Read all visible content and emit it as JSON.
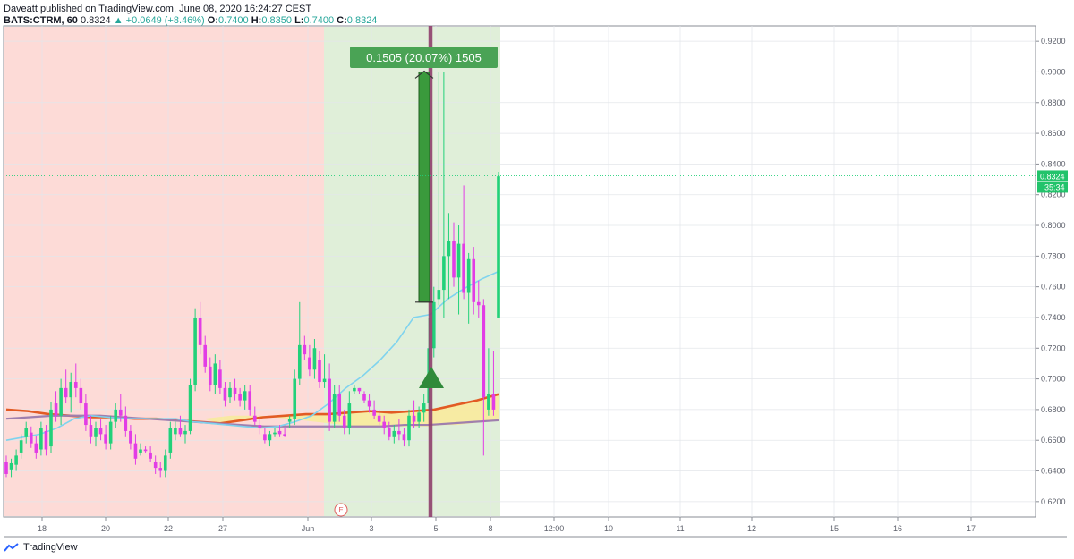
{
  "header": {
    "line1": "Daveatt published on TradingView.com, June 08, 2020 16:24:27 CEST",
    "symbol": "BATS:CTRM, 60",
    "last": "0.8324",
    "change": "▲ +0.0649 (+8.46%)",
    "ohlc": {
      "o_label": "O:",
      "o": "0.7400",
      "h_label": "H:",
      "h": "0.8350",
      "l_label": "L:",
      "l": "0.7400",
      "c_label": "C:",
      "c": "0.8324"
    }
  },
  "price_tag": "0.8324",
  "timer_tag": "35:34",
  "earnings_marker": "E",
  "measure_label": "0.1505 (20.07%) 1505",
  "footer": {
    "brand": "TradingView"
  },
  "colors": {
    "up": "#22d17a",
    "down": "#e23de5",
    "bg_red": "#fddbd7",
    "bg_green": "#e0efd9",
    "ema_fast": "#7fd3ee",
    "ema_mid": "#e25b24",
    "ema_slow": "#9f7fae",
    "cloud": "#f8eaa0",
    "measure": "#3a9a3c",
    "vline": "#8f3f6d"
  },
  "chart_data": {
    "type": "candlestick",
    "y_ticks": [
      "0.9200",
      "0.9000",
      "0.8800",
      "0.8600",
      "0.8400",
      "0.8200",
      "0.8000",
      "0.7800",
      "0.7600",
      "0.7400",
      "0.7200",
      "0.7000",
      "0.6800",
      "0.6600",
      "0.6400",
      "0.6200"
    ],
    "ylim": [
      0.61,
      0.93
    ],
    "x_ticks": [
      "18",
      "20",
      "22",
      "27",
      "Jun",
      "3",
      "5",
      "8",
      "12:00",
      "10",
      "11",
      "12",
      "15",
      "16",
      "17"
    ],
    "bars": [
      {
        "o": 0.646,
        "h": 0.65,
        "l": 0.636,
        "c": 0.638
      },
      {
        "o": 0.641,
        "h": 0.648,
        "l": 0.636,
        "c": 0.645
      },
      {
        "o": 0.644,
        "h": 0.654,
        "l": 0.64,
        "c": 0.65
      },
      {
        "o": 0.652,
        "h": 0.664,
        "l": 0.648,
        "c": 0.66
      },
      {
        "o": 0.662,
        "h": 0.672,
        "l": 0.658,
        "c": 0.668
      },
      {
        "o": 0.665,
        "h": 0.669,
        "l": 0.655,
        "c": 0.658
      },
      {
        "o": 0.658,
        "h": 0.663,
        "l": 0.648,
        "c": 0.652
      },
      {
        "o": 0.654,
        "h": 0.672,
        "l": 0.65,
        "c": 0.668
      },
      {
        "o": 0.666,
        "h": 0.67,
        "l": 0.65,
        "c": 0.654
      },
      {
        "o": 0.656,
        "h": 0.685,
        "l": 0.652,
        "c": 0.68
      },
      {
        "o": 0.684,
        "h": 0.692,
        "l": 0.672,
        "c": 0.676
      },
      {
        "o": 0.676,
        "h": 0.7,
        "l": 0.67,
        "c": 0.694
      },
      {
        "o": 0.694,
        "h": 0.706,
        "l": 0.684,
        "c": 0.688
      },
      {
        "o": 0.688,
        "h": 0.704,
        "l": 0.678,
        "c": 0.698
      },
      {
        "o": 0.698,
        "h": 0.71,
        "l": 0.688,
        "c": 0.694
      },
      {
        "o": 0.694,
        "h": 0.7,
        "l": 0.68,
        "c": 0.684
      },
      {
        "o": 0.684,
        "h": 0.69,
        "l": 0.666,
        "c": 0.67
      },
      {
        "o": 0.67,
        "h": 0.676,
        "l": 0.658,
        "c": 0.662
      },
      {
        "o": 0.662,
        "h": 0.672,
        "l": 0.656,
        "c": 0.668
      },
      {
        "o": 0.668,
        "h": 0.674,
        "l": 0.66,
        "c": 0.664
      },
      {
        "o": 0.664,
        "h": 0.67,
        "l": 0.654,
        "c": 0.658
      },
      {
        "o": 0.658,
        "h": 0.676,
        "l": 0.654,
        "c": 0.672
      },
      {
        "o": 0.672,
        "h": 0.684,
        "l": 0.668,
        "c": 0.68
      },
      {
        "o": 0.68,
        "h": 0.69,
        "l": 0.672,
        "c": 0.676
      },
      {
        "o": 0.676,
        "h": 0.682,
        "l": 0.662,
        "c": 0.666
      },
      {
        "o": 0.666,
        "h": 0.67,
        "l": 0.654,
        "c": 0.658
      },
      {
        "o": 0.658,
        "h": 0.664,
        "l": 0.644,
        "c": 0.648
      },
      {
        "o": 0.652,
        "h": 0.658,
        "l": 0.65,
        "c": 0.654
      },
      {
        "o": 0.654,
        "h": 0.656,
        "l": 0.652,
        "c": 0.653
      },
      {
        "o": 0.652,
        "h": 0.656,
        "l": 0.646,
        "c": 0.648
      },
      {
        "o": 0.646,
        "h": 0.65,
        "l": 0.638,
        "c": 0.642
      },
      {
        "o": 0.642,
        "h": 0.646,
        "l": 0.636,
        "c": 0.64
      },
      {
        "o": 0.64,
        "h": 0.654,
        "l": 0.636,
        "c": 0.65
      },
      {
        "o": 0.652,
        "h": 0.672,
        "l": 0.648,
        "c": 0.668
      },
      {
        "o": 0.664,
        "h": 0.672,
        "l": 0.66,
        "c": 0.668
      },
      {
        "o": 0.668,
        "h": 0.676,
        "l": 0.662,
        "c": 0.664
      },
      {
        "o": 0.664,
        "h": 0.67,
        "l": 0.658,
        "c": 0.666
      },
      {
        "o": 0.666,
        "h": 0.7,
        "l": 0.664,
        "c": 0.696
      },
      {
        "o": 0.696,
        "h": 0.746,
        "l": 0.692,
        "c": 0.74
      },
      {
        "o": 0.74,
        "h": 0.75,
        "l": 0.716,
        "c": 0.722
      },
      {
        "o": 0.722,
        "h": 0.728,
        "l": 0.704,
        "c": 0.708
      },
      {
        "o": 0.708,
        "h": 0.714,
        "l": 0.692,
        "c": 0.696
      },
      {
        "o": 0.696,
        "h": 0.716,
        "l": 0.69,
        "c": 0.71
      },
      {
        "o": 0.706,
        "h": 0.712,
        "l": 0.69,
        "c": 0.694
      },
      {
        "o": 0.694,
        "h": 0.698,
        "l": 0.682,
        "c": 0.686
      },
      {
        "o": 0.688,
        "h": 0.698,
        "l": 0.684,
        "c": 0.694
      },
      {
        "o": 0.694,
        "h": 0.7,
        "l": 0.686,
        "c": 0.69
      },
      {
        "o": 0.69,
        "h": 0.694,
        "l": 0.682,
        "c": 0.686
      },
      {
        "o": 0.686,
        "h": 0.696,
        "l": 0.68,
        "c": 0.692
      },
      {
        "o": 0.692,
        "h": 0.696,
        "l": 0.676,
        "c": 0.68
      },
      {
        "o": 0.676,
        "h": 0.682,
        "l": 0.67,
        "c": 0.672
      },
      {
        "o": 0.67,
        "h": 0.676,
        "l": 0.664,
        "c": 0.668
      },
      {
        "o": 0.664,
        "h": 0.668,
        "l": 0.658,
        "c": 0.66
      },
      {
        "o": 0.66,
        "h": 0.666,
        "l": 0.656,
        "c": 0.664
      },
      {
        "o": 0.664,
        "h": 0.668,
        "l": 0.662,
        "c": 0.665
      },
      {
        "o": 0.666,
        "h": 0.67,
        "l": 0.662,
        "c": 0.664
      },
      {
        "o": 0.664,
        "h": 0.668,
        "l": 0.662,
        "c": 0.663
      },
      {
        "o": 0.672,
        "h": 0.676,
        "l": 0.668,
        "c": 0.674
      },
      {
        "o": 0.674,
        "h": 0.706,
        "l": 0.67,
        "c": 0.7
      },
      {
        "o": 0.7,
        "h": 0.75,
        "l": 0.696,
        "c": 0.722
      },
      {
        "o": 0.722,
        "h": 0.728,
        "l": 0.712,
        "c": 0.716
      },
      {
        "o": 0.714,
        "h": 0.722,
        "l": 0.702,
        "c": 0.706
      },
      {
        "o": 0.706,
        "h": 0.726,
        "l": 0.7,
        "c": 0.72
      },
      {
        "o": 0.712,
        "h": 0.718,
        "l": 0.694,
        "c": 0.698
      },
      {
        "o": 0.698,
        "h": 0.716,
        "l": 0.694,
        "c": 0.7
      },
      {
        "o": 0.7,
        "h": 0.71,
        "l": 0.666,
        "c": 0.672
      },
      {
        "o": 0.672,
        "h": 0.696,
        "l": 0.668,
        "c": 0.69
      },
      {
        "o": 0.69,
        "h": 0.696,
        "l": 0.672,
        "c": 0.676
      },
      {
        "o": 0.676,
        "h": 0.68,
        "l": 0.664,
        "c": 0.668
      },
      {
        "o": 0.668,
        "h": 0.692,
        "l": 0.664,
        "c": 0.684
      },
      {
        "o": 0.692,
        "h": 0.696,
        "l": 0.69,
        "c": 0.694
      },
      {
        "o": 0.694,
        "h": 0.694,
        "l": 0.69,
        "c": 0.692
      },
      {
        "o": 0.69,
        "h": 0.692,
        "l": 0.684,
        "c": 0.686
      },
      {
        "o": 0.686,
        "h": 0.69,
        "l": 0.678,
        "c": 0.682
      },
      {
        "o": 0.68,
        "h": 0.686,
        "l": 0.674,
        "c": 0.676
      },
      {
        "o": 0.676,
        "h": 0.68,
        "l": 0.67,
        "c": 0.672
      },
      {
        "o": 0.672,
        "h": 0.676,
        "l": 0.664,
        "c": 0.668
      },
      {
        "o": 0.668,
        "h": 0.672,
        "l": 0.66,
        "c": 0.662
      },
      {
        "o": 0.662,
        "h": 0.67,
        "l": 0.658,
        "c": 0.666
      },
      {
        "o": 0.666,
        "h": 0.674,
        "l": 0.66,
        "c": 0.664
      },
      {
        "o": 0.664,
        "h": 0.668,
        "l": 0.656,
        "c": 0.66
      },
      {
        "o": 0.66,
        "h": 0.68,
        "l": 0.656,
        "c": 0.676
      },
      {
        "o": 0.676,
        "h": 0.686,
        "l": 0.668,
        "c": 0.672
      },
      {
        "o": 0.672,
        "h": 0.682,
        "l": 0.668,
        "c": 0.678
      },
      {
        "o": 0.678,
        "h": 0.69,
        "l": 0.672,
        "c": 0.684
      },
      {
        "o": 0.684,
        "h": 0.74,
        "l": 0.68,
        "c": 0.72
      },
      {
        "o": 0.72,
        "h": 0.76,
        "l": 0.714,
        "c": 0.75
      },
      {
        "o": 0.752,
        "h": 0.9,
        "l": 0.748,
        "c": 0.758
      },
      {
        "o": 0.758,
        "h": 0.9,
        "l": 0.74,
        "c": 0.78
      },
      {
        "o": 0.78,
        "h": 0.808,
        "l": 0.752,
        "c": 0.79
      },
      {
        "o": 0.79,
        "h": 0.802,
        "l": 0.76,
        "c": 0.766
      },
      {
        "o": 0.766,
        "h": 0.8,
        "l": 0.742,
        "c": 0.788
      },
      {
        "o": 0.788,
        "h": 0.826,
        "l": 0.752,
        "c": 0.756
      },
      {
        "o": 0.756,
        "h": 0.782,
        "l": 0.736,
        "c": 0.778
      },
      {
        "o": 0.778,
        "h": 0.786,
        "l": 0.742,
        "c": 0.75
      },
      {
        "o": 0.75,
        "h": 0.764,
        "l": 0.74,
        "c": 0.748
      },
      {
        "o": 0.748,
        "h": 0.752,
        "l": 0.65,
        "c": 0.688
      },
      {
        "o": 0.68,
        "h": 0.72,
        "l": 0.676,
        "c": 0.69
      },
      {
        "o": 0.69,
        "h": 0.718,
        "l": 0.676,
        "c": 0.68
      },
      {
        "o": 0.74,
        "h": 0.835,
        "l": 0.74,
        "c": 0.832
      }
    ],
    "ema_fast": [
      0.66,
      0.662,
      0.664,
      0.668,
      0.674,
      0.676,
      0.675,
      0.674,
      0.674,
      0.674,
      0.674,
      0.672,
      0.671,
      0.67,
      0.669,
      0.668,
      0.669,
      0.672,
      0.676,
      0.684,
      0.694,
      0.702,
      0.712,
      0.724,
      0.74,
      0.742,
      0.752,
      0.759,
      0.765,
      0.77
    ],
    "ema_mid": [
      0.68,
      0.679,
      0.677,
      0.676,
      0.675,
      0.675,
      0.674,
      0.674,
      0.673,
      0.672,
      0.671,
      0.673,
      0.675,
      0.676,
      0.677,
      0.677,
      0.678,
      0.679,
      0.678,
      0.679,
      0.68,
      0.683,
      0.686,
      0.69
    ],
    "ema_slow": [
      0.674,
      0.675,
      0.676,
      0.676,
      0.676,
      0.675,
      0.674,
      0.673,
      0.672,
      0.671,
      0.67,
      0.669,
      0.669,
      0.669,
      0.669,
      0.669,
      0.669,
      0.67,
      0.67,
      0.671,
      0.672,
      0.673
    ]
  }
}
